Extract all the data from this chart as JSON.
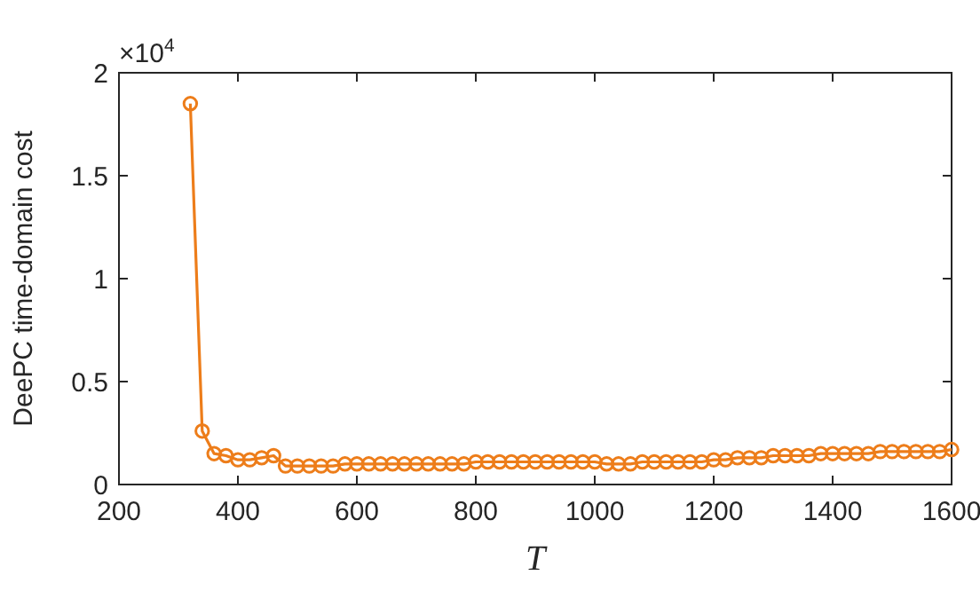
{
  "chart_data": {
    "type": "line",
    "xlabel": "T",
    "ylabel": "DeePC time-domain cost",
    "annotations": [
      "×10$^{4}$"
    ],
    "x": [
      320,
      340,
      360,
      380,
      400,
      420,
      440,
      460,
      480,
      500,
      520,
      540,
      560,
      580,
      600,
      620,
      640,
      660,
      680,
      700,
      720,
      740,
      760,
      780,
      800,
      820,
      840,
      860,
      880,
      900,
      920,
      940,
      960,
      980,
      1000,
      1020,
      1040,
      1060,
      1080,
      1100,
      1120,
      1140,
      1160,
      1180,
      1200,
      1220,
      1240,
      1260,
      1280,
      1300,
      1320,
      1340,
      1360,
      1380,
      1400,
      1420,
      1440,
      1460,
      1480,
      1500,
      1520,
      1540,
      1560,
      1580,
      1600
    ],
    "series": [
      {
        "color": "#ed7d1a",
        "values": [
          1.85,
          0.26,
          0.15,
          0.14,
          0.12,
          0.12,
          0.13,
          0.14,
          0.09,
          0.09,
          0.09,
          0.09,
          0.09,
          0.1,
          0.1,
          0.1,
          0.1,
          0.1,
          0.1,
          0.1,
          0.1,
          0.1,
          0.1,
          0.1,
          0.11,
          0.11,
          0.11,
          0.11,
          0.11,
          0.11,
          0.11,
          0.11,
          0.11,
          0.11,
          0.11,
          0.1,
          0.1,
          0.1,
          0.11,
          0.11,
          0.11,
          0.11,
          0.11,
          0.11,
          0.12,
          0.12,
          0.13,
          0.13,
          0.13,
          0.14,
          0.14,
          0.14,
          0.14,
          0.15,
          0.15,
          0.15,
          0.15,
          0.15,
          0.16,
          0.16,
          0.16,
          0.16,
          0.16,
          0.16,
          0.17
        ]
      }
    ],
    "xlim": [
      200,
      1600
    ],
    "xticks": [
      200,
      400,
      600,
      800,
      1000,
      1200,
      1400,
      1600
    ],
    "ylim": [
      0,
      2
    ],
    "yticks": [
      0,
      0.5,
      1,
      1.5,
      2
    ],
    "marker": "circle",
    "line_style": "solid"
  }
}
